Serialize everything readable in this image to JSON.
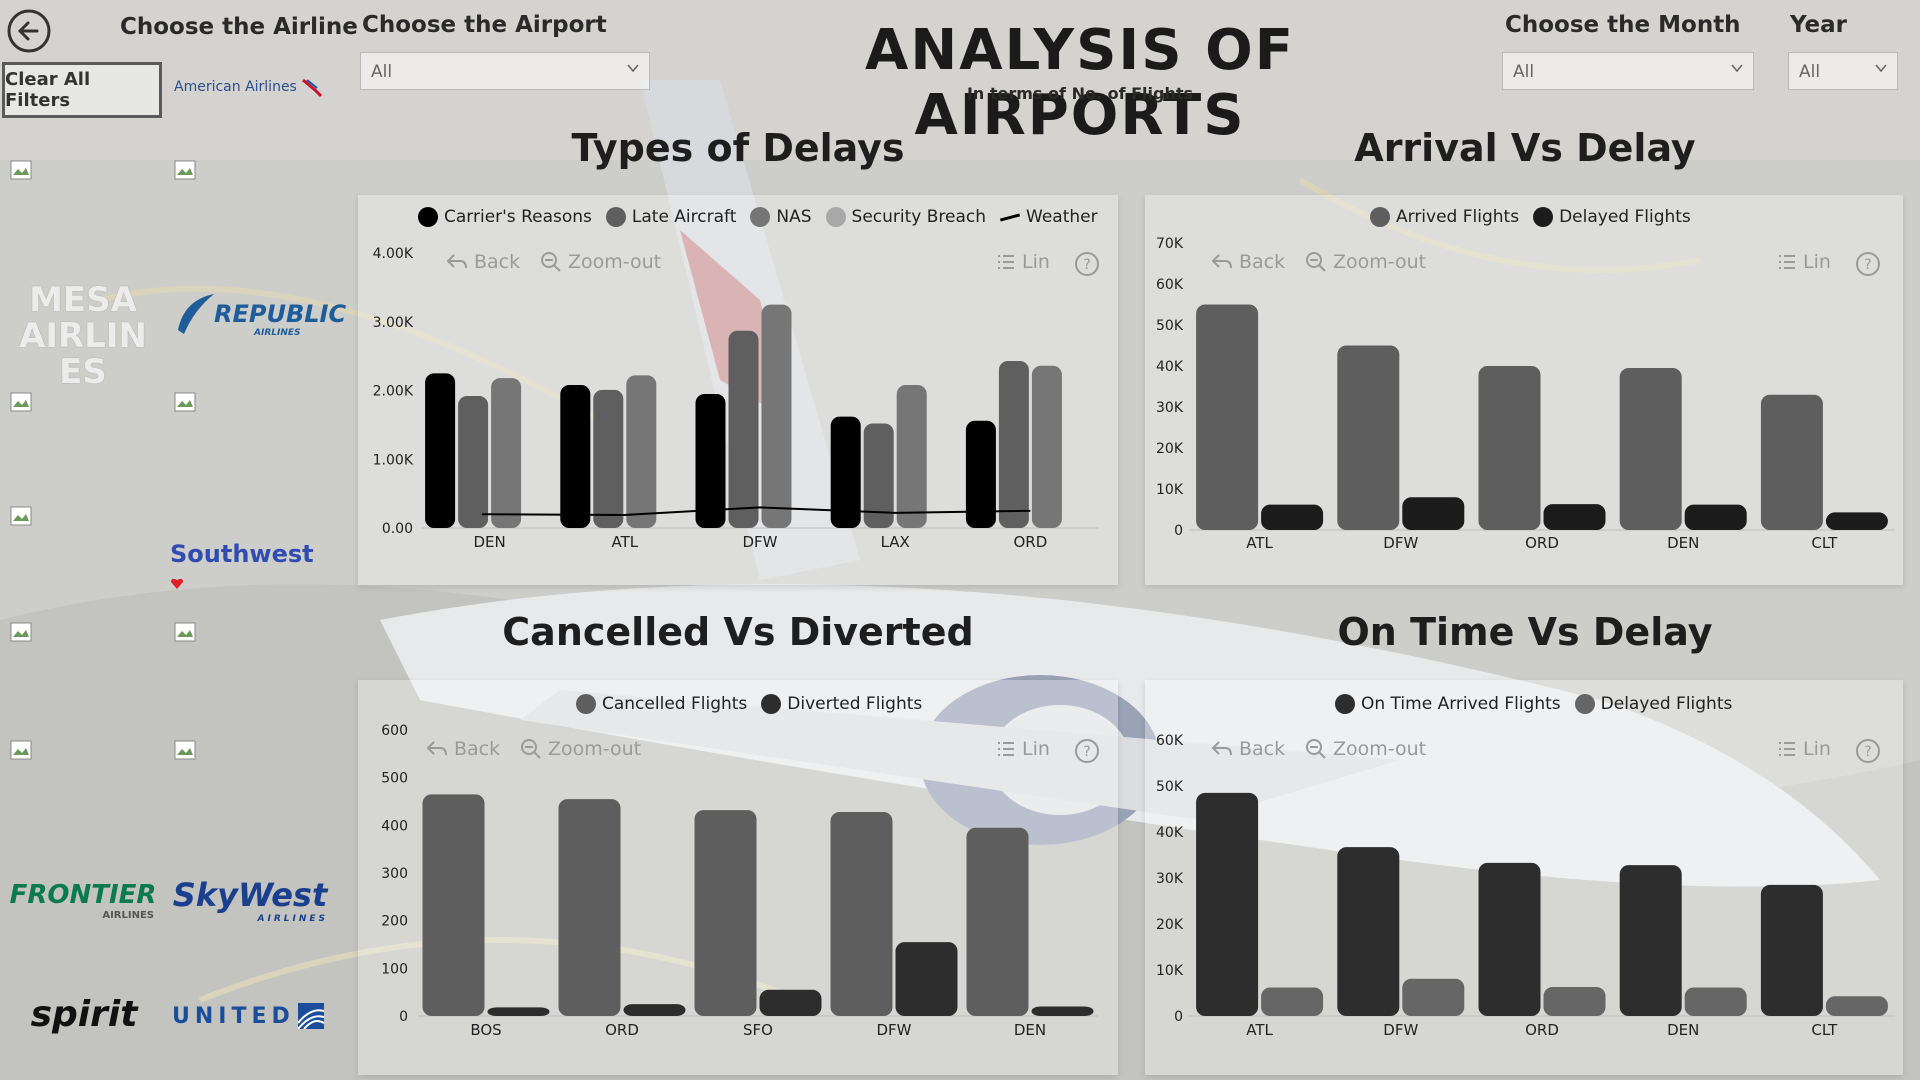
{
  "header": {
    "title": "ANALYSIS OF AIRPORTS",
    "subtitle": "In terms of No. of Flights",
    "back_icon": "back-arrow-icon",
    "clear_filters_label": "Clear All Filters"
  },
  "filters": {
    "airline_label": "Choose the Airline",
    "airport_label": "Choose the Airport",
    "airport_value": "All",
    "month_label": "Choose the Month",
    "month_value": "All",
    "year_label": "Year",
    "year_value": "All"
  },
  "airlines": {
    "american": "American Airlines",
    "mesa": "MESA AIRLINES",
    "republic": "REPUBLIC",
    "republic_sub": "AIRLINES",
    "southwest": "Southwest",
    "frontier": "FRONTIER",
    "frontier_sub": "AIRLINES",
    "skywest": "SkyWest",
    "skywest_sub": "AIRLINES",
    "spirit": "spirit",
    "united": "UNITED"
  },
  "toolbar": {
    "back": "Back",
    "zoom_out": "Zoom-out",
    "lin": "Lin",
    "help": "?"
  },
  "colors": {
    "black": "#000000",
    "dark": "#2d2d2d",
    "mid": "#5a5a5a",
    "gray": "#6e6e6e",
    "light": "#7f7f7f",
    "lighter": "#9e9e9e"
  },
  "chart_data": [
    {
      "id": "types_of_delays",
      "type": "bar",
      "title": "Types of Delays",
      "categories": [
        "DEN",
        "ATL",
        "DFW",
        "LAX",
        "ORD"
      ],
      "series": [
        {
          "name": "Carrier's Reasons",
          "values": [
            2250,
            2080,
            1950,
            1620,
            1560
          ],
          "color": "#000000"
        },
        {
          "name": "Late Aircraft",
          "values": [
            1920,
            2010,
            2870,
            1520,
            2430
          ],
          "color": "#5f5f5f"
        },
        {
          "name": "NAS",
          "values": [
            2180,
            2220,
            3250,
            2080,
            2360
          ],
          "color": "#767676"
        },
        {
          "name": "Security Breach",
          "values": [
            0,
            0,
            0,
            0,
            0
          ],
          "color": "#a8a8a8"
        },
        {
          "name": "Weather",
          "values": [
            200,
            190,
            300,
            220,
            250
          ],
          "color": "#000000",
          "kind": "line"
        }
      ],
      "yticks": [
        "0.00",
        "1.00K",
        "2.00K",
        "3.00K",
        "4.00K"
      ],
      "ylim": [
        0,
        4000
      ]
    },
    {
      "id": "arrival_vs_delay",
      "type": "bar",
      "title": "Arrival Vs Delay",
      "categories": [
        "ATL",
        "DFW",
        "ORD",
        "DEN",
        "CLT"
      ],
      "series": [
        {
          "name": "Arrived Flights",
          "values": [
            55000,
            45000,
            40000,
            39500,
            33000
          ],
          "color": "#5e5e5e"
        },
        {
          "name": "Delayed Flights",
          "values": [
            6200,
            8000,
            6300,
            6200,
            4300
          ],
          "color": "#1c1c1c"
        }
      ],
      "yticks": [
        "0",
        "10K",
        "20K",
        "30K",
        "40K",
        "50K",
        "60K",
        "70K"
      ],
      "ylim": [
        0,
        70000
      ]
    },
    {
      "id": "cancelled_vs_diverted",
      "type": "bar",
      "title": "Cancelled Vs Diverted",
      "categories": [
        "BOS",
        "ORD",
        "SFO",
        "DFW",
        "DEN"
      ],
      "series": [
        {
          "name": "Cancelled Flights",
          "values": [
            465,
            455,
            432,
            428,
            395
          ],
          "color": "#5e5e5e"
        },
        {
          "name": "Diverted Flights",
          "values": [
            18,
            25,
            55,
            155,
            20
          ],
          "color": "#2d2d2d"
        }
      ],
      "yticks": [
        "0",
        "100",
        "200",
        "300",
        "400",
        "500",
        "600"
      ],
      "ylim": [
        0,
        600
      ]
    },
    {
      "id": "on_time_vs_delay",
      "type": "bar",
      "title": "On Time Vs Delay",
      "categories": [
        "ATL",
        "DFW",
        "ORD",
        "DEN",
        "CLT"
      ],
      "series": [
        {
          "name": "On Time Arrived Flights",
          "values": [
            48500,
            36700,
            33300,
            32800,
            28500
          ],
          "color": "#2d2d2d"
        },
        {
          "name": "Delayed Flights",
          "values": [
            6200,
            8100,
            6300,
            6200,
            4300
          ],
          "color": "#666666"
        }
      ],
      "yticks": [
        "0",
        "10K",
        "20K",
        "30K",
        "40K",
        "50K",
        "60K"
      ],
      "ylim": [
        0,
        60000
      ]
    }
  ]
}
